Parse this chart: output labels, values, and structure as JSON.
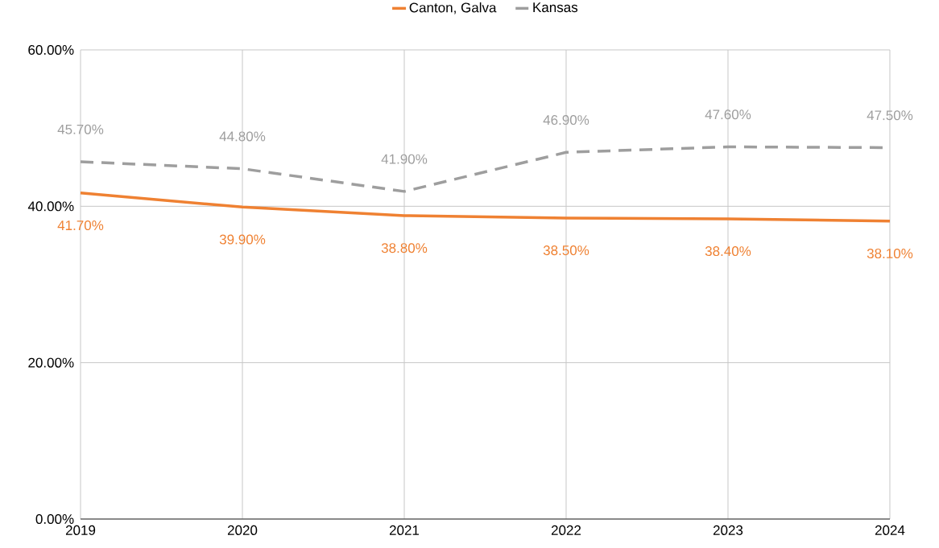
{
  "chart_data": {
    "type": "line",
    "x": [
      2019,
      2020,
      2021,
      2022,
      2023,
      2024
    ],
    "series": [
      {
        "name": "Canton, Galva",
        "color": "#ef8132",
        "line_style": "solid",
        "values": [
          41.7,
          39.9,
          38.8,
          38.5,
          38.4,
          38.1
        ],
        "value_labels": [
          "41.70%",
          "39.90%",
          "38.80%",
          "38.50%",
          "38.40%",
          "38.10%"
        ]
      },
      {
        "name": "Kansas",
        "color": "#9e9e9e",
        "line_style": "dashed",
        "values": [
          45.7,
          44.8,
          41.9,
          46.9,
          47.6,
          47.5
        ],
        "value_labels": [
          "45.70%",
          "44.80%",
          "41.90%",
          "46.90%",
          "47.60%",
          "47.50%"
        ]
      }
    ],
    "xlim": [
      2019,
      2024
    ],
    "xticks": [
      2019,
      2020,
      2021,
      2022,
      2023,
      2024
    ],
    "ylim": [
      0,
      60
    ],
    "yticks": [
      {
        "value": 0,
        "label": "0.00%"
      },
      {
        "value": 20,
        "label": "20.00%"
      },
      {
        "value": 40,
        "label": "40.00%"
      },
      {
        "value": 60,
        "label": "60.00%"
      }
    ],
    "grid": true,
    "legend": "top",
    "marker": "none"
  }
}
